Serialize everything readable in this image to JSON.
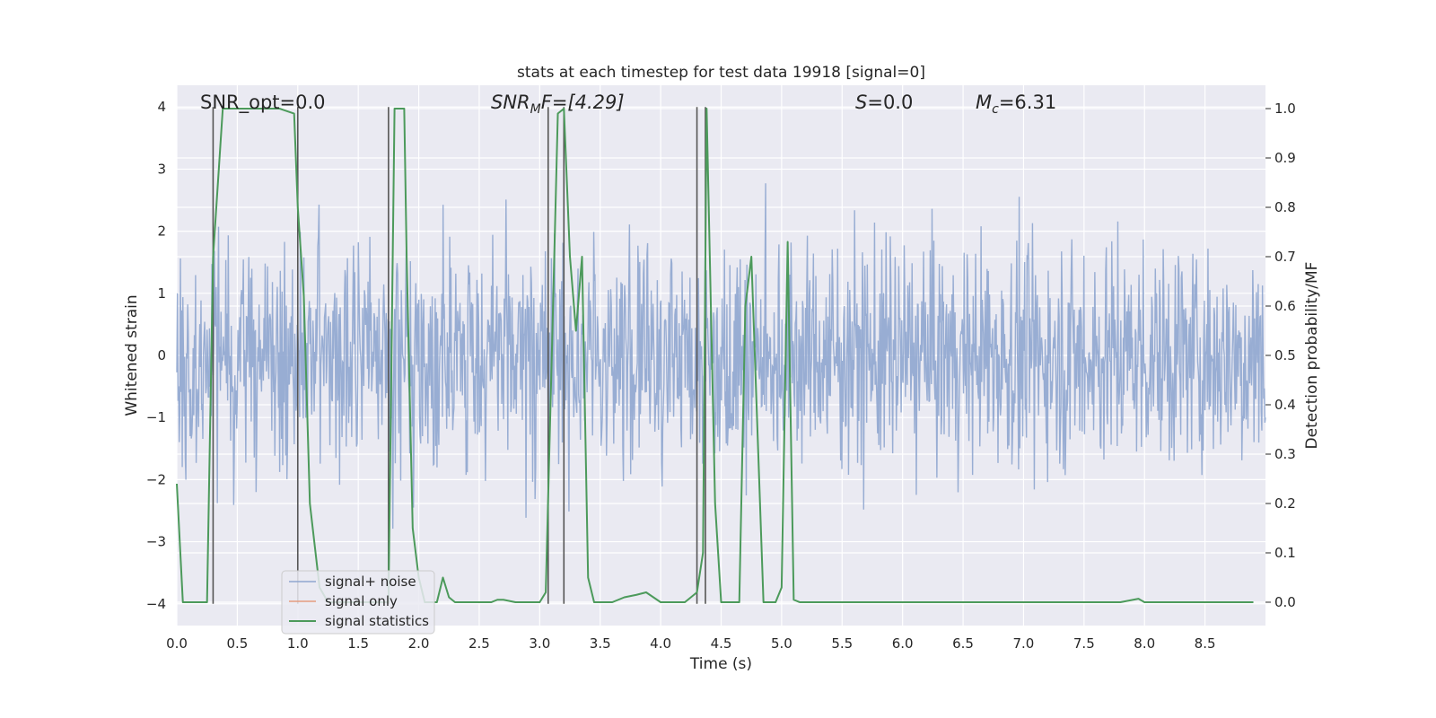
{
  "chart_data": {
    "type": "line",
    "title": "stats at each timestep for test data 19918 [signal=0]",
    "xlabel": "Time (s)",
    "ylabel": "Whitened strain",
    "y2label": "Detection probability/MF",
    "xlim": [
      0,
      9.0
    ],
    "ylim": [
      -4.35,
      4.35
    ],
    "y2lim": [
      -0.0473,
      1.0473
    ],
    "x_ticks": [
      0.0,
      0.5,
      1.0,
      1.5,
      2.0,
      2.5,
      3.0,
      3.5,
      4.0,
      4.5,
      5.0,
      5.5,
      6.0,
      6.5,
      7.0,
      7.5,
      8.0,
      8.5
    ],
    "x_tick_labels": [
      "0.0",
      "0.5",
      "1.0",
      "1.5",
      "2.0",
      "2.5",
      "3.0",
      "3.5",
      "4.0",
      "4.5",
      "5.0",
      "5.5",
      "6.0",
      "6.5",
      "7.0",
      "7.5",
      "8.0",
      "8.5"
    ],
    "y_ticks": [
      4,
      3,
      2,
      1,
      0,
      -1,
      -2,
      -3,
      -4
    ],
    "y_tick_labels": [
      "4",
      "3",
      "2",
      "1",
      "0",
      "−1",
      "−2",
      "−3",
      "−4"
    ],
    "y2_ticks": [
      1.0,
      0.9,
      0.8,
      0.7,
      0.6,
      0.5,
      0.4,
      0.3,
      0.2,
      0.1,
      0.0
    ],
    "y2_tick_labels": [
      "1.0",
      "0.9",
      "0.8",
      "0.7",
      "0.6",
      "0.5",
      "0.4",
      "0.3",
      "0.2",
      "0.1",
      "0.0"
    ],
    "annotations": {
      "snr_opt": "SNR_opt=0.0",
      "snr_mf_main": "SNR",
      "snr_mf_sub": "M",
      "snr_mf_tail": "F=[4.29]",
      "s_main": "S",
      "s_tail": "=0.0",
      "mc_main": "M",
      "mc_sub": "c",
      "mc_tail": "=6.31"
    },
    "legend": {
      "placement": "lower-left",
      "entries": [
        "signal+ noise",
        "signal only",
        "signal statistics"
      ]
    },
    "series": [
      {
        "name": "signal+ noise",
        "axis": "left",
        "color": "#8fa6cf",
        "description": "whitened noise, approx. Gaussian with std ~1, sampled densely over 0-9 s",
        "sample_count": 1800,
        "seed": 19918
      },
      {
        "name": "signal only",
        "axis": "left",
        "color": "#e59c7f",
        "x": [],
        "y": []
      },
      {
        "name": "signal statistics",
        "axis": "right",
        "color": "#4c9a5b",
        "x": [
          0.0,
          0.05,
          0.1,
          0.15,
          0.25,
          0.3,
          0.38,
          0.45,
          0.55,
          0.7,
          0.85,
          0.97,
          1.0,
          1.05,
          1.1,
          1.18,
          1.25,
          1.5,
          1.7,
          1.75,
          1.8,
          1.83,
          1.88,
          1.9,
          1.95,
          2.0,
          2.05,
          2.1,
          2.15,
          2.2,
          2.25,
          2.3,
          2.5,
          2.6,
          2.65,
          2.7,
          2.8,
          3.0,
          3.05,
          3.1,
          3.15,
          3.2,
          3.25,
          3.3,
          3.35,
          3.4,
          3.45,
          3.5,
          3.6,
          3.7,
          3.8,
          3.88,
          4.0,
          4.1,
          4.2,
          4.3,
          4.35,
          4.38,
          4.45,
          4.5,
          4.6,
          4.65,
          4.7,
          4.75,
          4.85,
          4.95,
          5.0,
          5.05,
          5.1,
          5.15,
          5.2,
          5.5,
          6.0,
          6.5,
          7.0,
          7.5,
          7.8,
          7.95,
          8.0,
          8.2,
          8.5,
          8.9
        ],
        "y": [
          0.24,
          0.0,
          0.0,
          0.0,
          0.0,
          0.7,
          1.0,
          1.0,
          1.0,
          1.0,
          1.0,
          0.99,
          0.8,
          0.62,
          0.2,
          0.03,
          0.0,
          0.0,
          0.0,
          0.0,
          1.0,
          1.0,
          1.0,
          0.7,
          0.15,
          0.05,
          0.0,
          0.0,
          0.0,
          0.05,
          0.01,
          0.0,
          0.0,
          0.0,
          0.005,
          0.005,
          0.0,
          0.0,
          0.02,
          0.5,
          0.99,
          1.0,
          0.7,
          0.55,
          0.7,
          0.05,
          0.0,
          0.0,
          0.0,
          0.01,
          0.015,
          0.02,
          0.0,
          0.0,
          0.0,
          0.02,
          0.1,
          1.0,
          0.2,
          0.0,
          0.0,
          0.0,
          0.6,
          0.7,
          0.0,
          0.0,
          0.03,
          0.73,
          0.005,
          0.0,
          0.0,
          0.0,
          0.0,
          0.0,
          0.0,
          0.0,
          0.0,
          0.007,
          0.0,
          0.0,
          0.0,
          0.0
        ]
      }
    ],
    "vertical_lines": [
      0.3,
      1.0,
      1.75,
      3.07,
      3.2,
      4.3,
      4.37
    ]
  }
}
